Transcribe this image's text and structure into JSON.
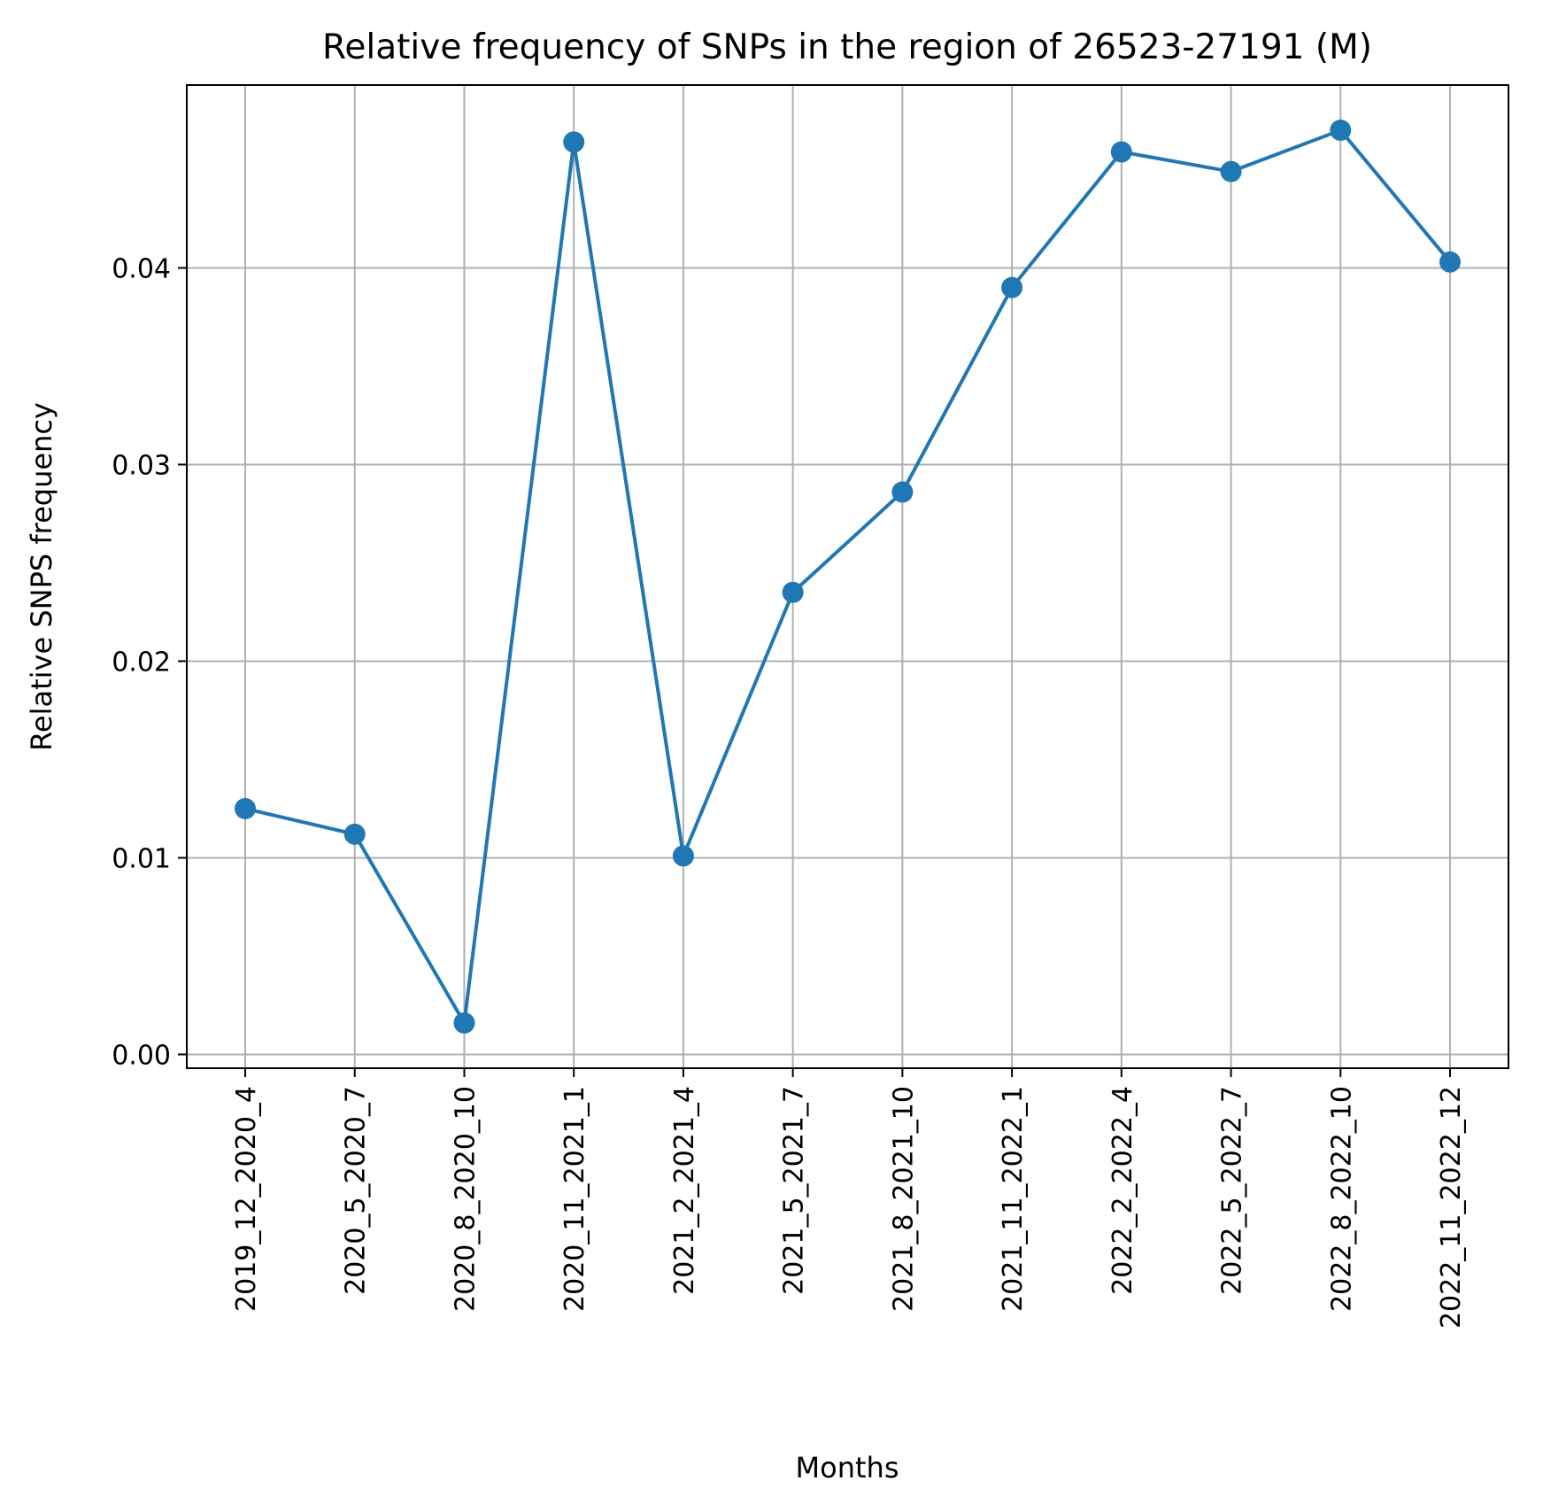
{
  "chart_data": {
    "type": "line",
    "title": "Relative frequency of SNPs in the region of 26523-27191 (M)",
    "xlabel": "Months",
    "ylabel": "Relative SNPS frequency",
    "categories": [
      "2019_12_2020_4",
      "2020_5_2020_7",
      "2020_8_2020_10",
      "2020_11_2021_1",
      "2021_2_2021_4",
      "2021_5_2021_7",
      "2021_8_2021_10",
      "2021_11_2022_1",
      "2022_2_2022_4",
      "2022_5_2022_7",
      "2022_8_2022_10",
      "2022_11_2022_12"
    ],
    "series": [
      {
        "values": [
          0.0125,
          0.0112,
          0.0016,
          0.0464,
          0.0101,
          0.0235,
          0.0286,
          0.039,
          0.0459,
          0.0449,
          0.047,
          0.0403
        ],
        "color": "#1f77b4",
        "marker": "circle"
      }
    ],
    "yticks": [
      0.0,
      0.01,
      0.02,
      0.03,
      0.04
    ],
    "ytick_labels": [
      "0.00",
      "0.01",
      "0.02",
      "0.03",
      "0.04"
    ],
    "ylim": [
      -0.0007,
      0.0493
    ],
    "grid": true,
    "legend": "none"
  }
}
